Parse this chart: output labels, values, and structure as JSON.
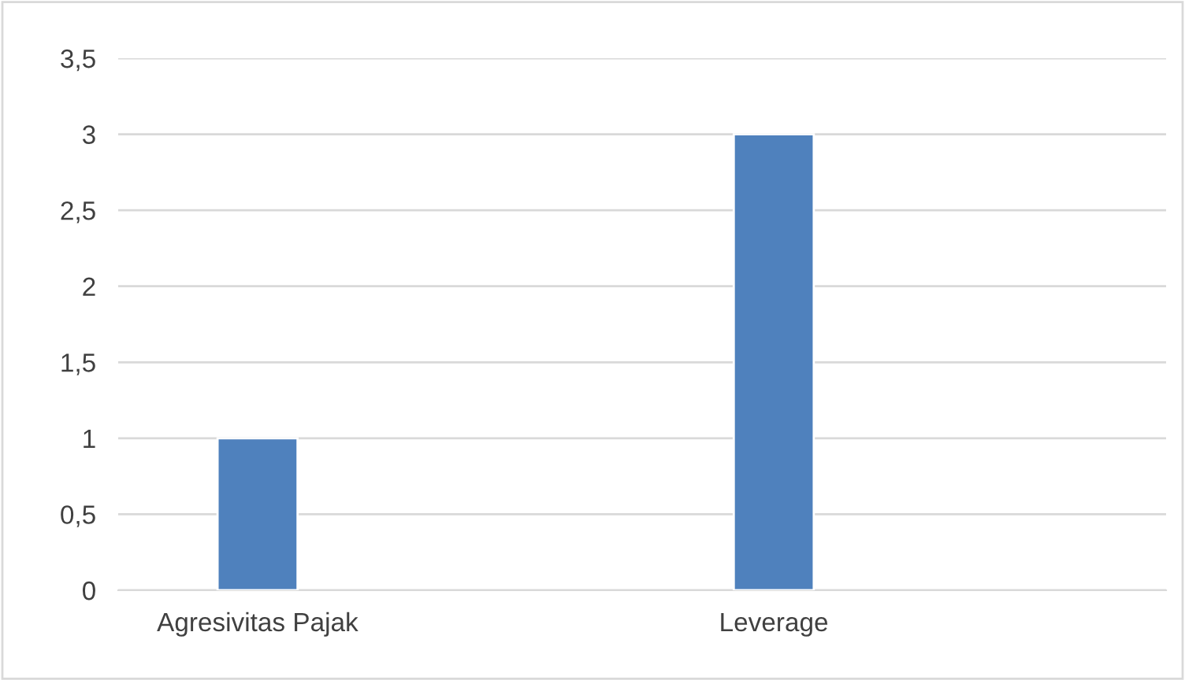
{
  "chart_data": {
    "type": "bar",
    "categories": [
      "Agresivitas Pajak",
      "Leverage"
    ],
    "values": [
      1,
      3
    ],
    "color": "#4f81bd",
    "ylim": [
      0,
      3.5
    ],
    "yticks": [
      0,
      {
        "value": 0.5,
        "label": "0,5"
      },
      1,
      {
        "value": 1.5,
        "label": "1,5"
      },
      2,
      {
        "value": 2.5,
        "label": "2,5"
      },
      3,
      {
        "value": 3.5,
        "label": "3,5"
      }
    ],
    "grid": "y"
  }
}
